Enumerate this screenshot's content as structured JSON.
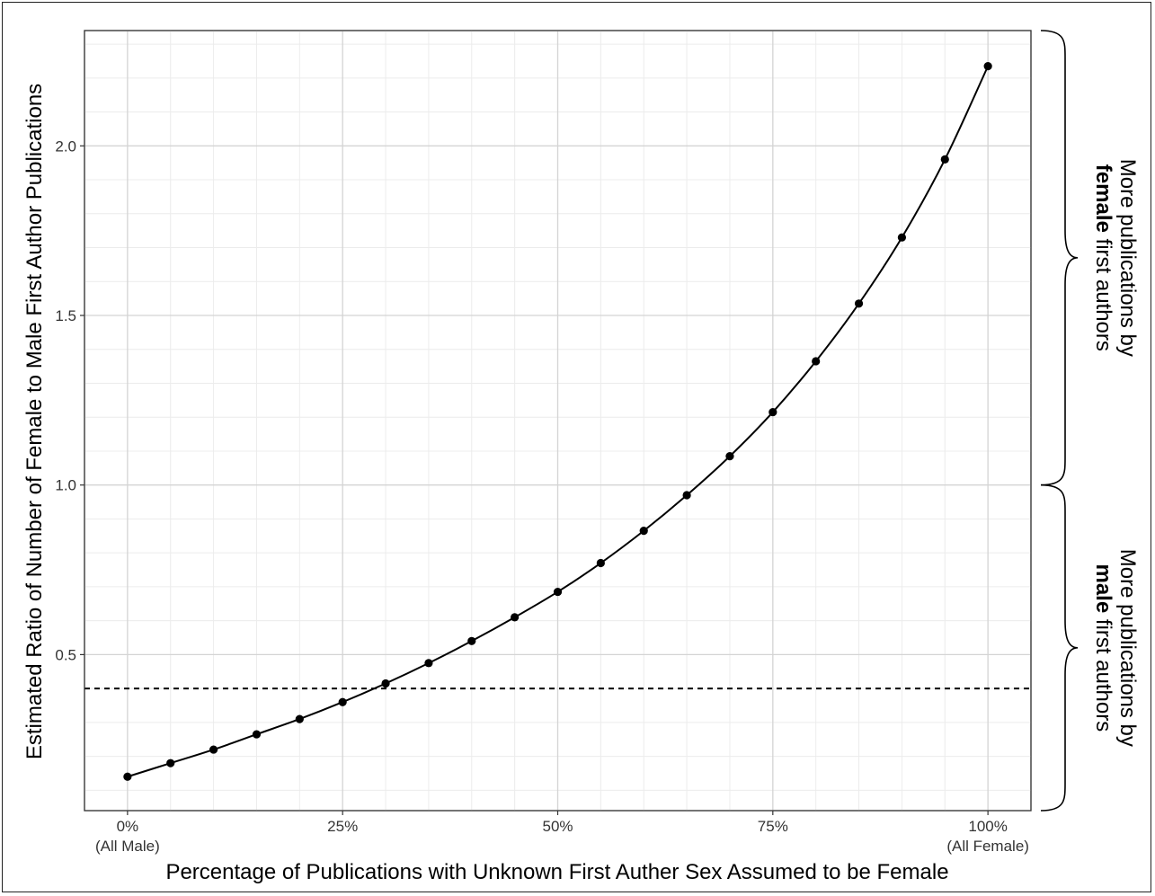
{
  "chart_data": {
    "type": "line",
    "xlabel": "Percentage of Publications with Unknown First Auther Sex Assumed to be Female",
    "ylabel": "Estimated Ratio of Number of Female to Male First Author Publications",
    "x": [
      0,
      5,
      10,
      15,
      20,
      25,
      30,
      35,
      40,
      45,
      50,
      55,
      60,
      65,
      70,
      75,
      80,
      85,
      90,
      95,
      100
    ],
    "series": [
      {
        "values": [
          0.14,
          0.18,
          0.22,
          0.265,
          0.31,
          0.36,
          0.415,
          0.475,
          0.54,
          0.61,
          0.685,
          0.77,
          0.865,
          0.97,
          1.085,
          1.215,
          1.365,
          1.535,
          1.73,
          1.96,
          2.235
        ]
      }
    ],
    "reference_line": {
      "y": 0.4,
      "style": "dashed"
    },
    "xlim": [
      -5,
      105
    ],
    "ylim": [
      0.04,
      2.34
    ],
    "x_ticks": [
      {
        "value": 0,
        "label": "0%"
      },
      {
        "value": 25,
        "label": "25%"
      },
      {
        "value": 50,
        "label": "50%"
      },
      {
        "value": 75,
        "label": "75%"
      },
      {
        "value": 100,
        "label": "100%"
      }
    ],
    "x_tick_sublabels": [
      {
        "value": 0,
        "label": "(All Male)"
      },
      {
        "value": 100,
        "label": "(All Female)"
      }
    ],
    "y_ticks": [
      {
        "value": 0.5,
        "label": "0.5"
      },
      {
        "value": 1.0,
        "label": "1.0"
      },
      {
        "value": 1.5,
        "label": "1.5"
      },
      {
        "value": 2.0,
        "label": "2.0"
      }
    ],
    "grid": true,
    "annotations": [
      {
        "y_from": 1.0,
        "y_to": 2.34,
        "line1": "More publications  by",
        "line2_bold": "female",
        "line2_rest": " first authors"
      },
      {
        "y_from": 0.04,
        "y_to": 1.0,
        "line1": "More publications  by",
        "line2_bold": "male",
        "line2_rest": " first authors"
      }
    ]
  }
}
